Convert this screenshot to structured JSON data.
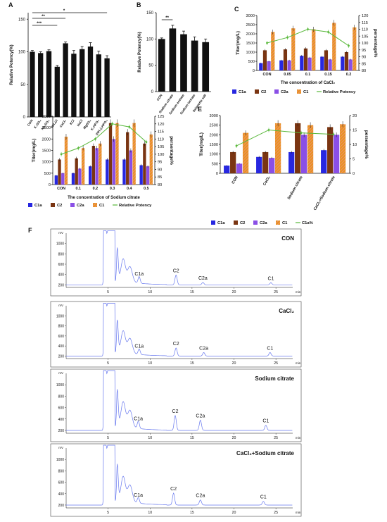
{
  "colors": {
    "C1a": "#2727e0",
    "C2": "#7a3512",
    "C2a": "#8a4fe6",
    "C1": "#e8951f",
    "C1_hatch": "#f08aa0",
    "line": "#58b83a",
    "hplc": "#6677ee",
    "bar": "#111111"
  },
  "chart_data": [
    {
      "panel_label": "A",
      "type": "bar",
      "ylabel": "Relative Potency(%)",
      "ylim": [
        0,
        160
      ],
      "yticks": [
        "0",
        "50",
        "100",
        "150"
      ],
      "categories": [
        "CON",
        "K₂SO₄",
        "Na₂SO₄",
        "NH₄Cl",
        "CaCl₂",
        "KCl",
        "NaCl",
        "MgSO₄",
        "K₂HPO₄",
        "(NH₄)₂HPO₄"
      ],
      "values": [
        100,
        98,
        101,
        77,
        113,
        97,
        104,
        108,
        96,
        90
      ],
      "errors": [
        2,
        2,
        2,
        2,
        2,
        5,
        4,
        6,
        5,
        4
      ],
      "significance": [
        "***",
        "**",
        "*"
      ]
    },
    {
      "panel_label": "B",
      "type": "bar",
      "ylabel": "Relative Potency(%)",
      "ylim": [
        0,
        150
      ],
      "yticks": [
        "0",
        "50",
        "100",
        "150"
      ],
      "categories": [
        "CON",
        "Sodium citrate",
        "Sodium acetate",
        "Sodium tartrate",
        "Seignette salt"
      ],
      "values": [
        100,
        120,
        109,
        97,
        94
      ],
      "errors": [
        2,
        6,
        6,
        7,
        6
      ],
      "significance": [
        "**"
      ]
    },
    {
      "panel_label": "C",
      "type": "bar",
      "xlabel": "The concentration of CaCl₂",
      "ylabel": "Titer(mg/L)",
      "y2label": "persentage%",
      "yticks": [
        "0",
        "500",
        "1000",
        "1500",
        "2000",
        "2500",
        "3000"
      ],
      "y2ticks": [
        "80",
        "85",
        "90",
        "95",
        "100",
        "105",
        "110",
        "115",
        "120"
      ],
      "ylim": [
        0,
        3000
      ],
      "y2lim": [
        80,
        120
      ],
      "categories": [
        "CON",
        "0.05",
        "0.1",
        "0.15",
        "0.2"
      ],
      "series": [
        {
          "name": "C1a",
          "values": [
            400,
            550,
            800,
            750,
            750
          ]
        },
        {
          "name": "C2",
          "values": [
            1100,
            1150,
            1200,
            1100,
            1000
          ]
        },
        {
          "name": "C2a",
          "values": [
            500,
            550,
            700,
            600,
            600
          ]
        },
        {
          "name": "C1",
          "values": [
            2100,
            2300,
            2250,
            2600,
            2350
          ]
        },
        {
          "name": "Relative Potency",
          "type": "line",
          "axis": "right",
          "values": [
            100,
            104,
            110,
            108,
            98
          ]
        }
      ]
    },
    {
      "panel_label": "D",
      "type": "bar",
      "xlabel": "The concentration of Sodium citrate",
      "ylabel": "Titer(mg/L)",
      "y2label": "persentage%",
      "yticks": [
        "0",
        "500",
        "1000",
        "1500",
        "2000",
        "2500",
        "3000"
      ],
      "y2ticks": [
        "80",
        "85",
        "90",
        "95",
        "100",
        "105",
        "110",
        "115",
        "120",
        "125"
      ],
      "ylim": [
        0,
        3000
      ],
      "y2lim": [
        80,
        125
      ],
      "categories": [
        "CON",
        "0.1",
        "0.2",
        "0.3",
        "0.4",
        "0.5"
      ],
      "series": [
        {
          "name": "C1a",
          "values": [
            400,
            500,
            800,
            1100,
            1100,
            850
          ]
        },
        {
          "name": "C2",
          "values": [
            1100,
            1150,
            1700,
            2700,
            2300,
            1800
          ]
        },
        {
          "name": "C2a",
          "values": [
            500,
            700,
            1600,
            2000,
            1500,
            800
          ]
        },
        {
          "name": "C1",
          "values": [
            2100,
            1600,
            1800,
            2700,
            2700,
            2200
          ]
        },
        {
          "name": "Relative Potency",
          "type": "line",
          "axis": "right",
          "values": [
            100,
            104,
            110,
            120,
            118,
            108
          ]
        }
      ]
    },
    {
      "panel_label": "E",
      "type": "bar",
      "ylabel": "Titer(mg/L)",
      "y2label": "persentage%",
      "yticks": [
        "0",
        "500",
        "1000",
        "1500",
        "2000",
        "2500",
        "3000"
      ],
      "y2ticks": [
        "0",
        "5",
        "10",
        "15",
        "20"
      ],
      "ylim": [
        0,
        3000
      ],
      "y2lim": [
        0,
        20
      ],
      "categories": [
        "CON",
        "CaCl₂",
        "Sodium citrate",
        "CaCl₂+Sodium citrate"
      ],
      "series": [
        {
          "name": "C1a",
          "values": [
            400,
            850,
            1100,
            1200
          ]
        },
        {
          "name": "C2",
          "values": [
            1100,
            1100,
            2600,
            2400
          ]
        },
        {
          "name": "C2a",
          "values": [
            500,
            800,
            2000,
            2000
          ]
        },
        {
          "name": "C1",
          "values": [
            2100,
            2600,
            2500,
            2550
          ]
        },
        {
          "name": "C1a%",
          "type": "line",
          "axis": "right",
          "values": [
            9.5,
            15,
            14,
            13.5
          ]
        }
      ]
    },
    {
      "panel_label": "F",
      "type": "line",
      "unit_y": "mV",
      "unit_x": "min",
      "xlim": [
        0,
        27
      ],
      "xticks": [
        "5",
        "10",
        "15",
        "20",
        "25"
      ],
      "yticks": [
        "200",
        "400",
        "600",
        "800",
        "1000"
      ],
      "traces": [
        {
          "name": "CON",
          "peaks": [
            {
              "label": "C1a",
              "x": 8.7,
              "y": 330
            },
            {
              "label": "C2",
              "x": 13.1,
              "y": 390
            },
            {
              "label": "C2a",
              "x": 16.3,
              "y": 245
            },
            {
              "label": "C1",
              "x": 24.4,
              "y": 240
            }
          ]
        },
        {
          "name": "CaCl₂",
          "peaks": [
            {
              "label": "C1a",
              "x": 8.7,
              "y": 310
            },
            {
              "label": "C2",
              "x": 13.1,
              "y": 360
            },
            {
              "label": "C2a",
              "x": 16.4,
              "y": 270
            },
            {
              "label": "C1",
              "x": 24.3,
              "y": 270
            }
          ]
        },
        {
          "name": "Sodium citrate",
          "peaks": [
            {
              "label": "C1a",
              "x": 8.6,
              "y": 330
            },
            {
              "label": "C2",
              "x": 13.0,
              "y": 460
            },
            {
              "label": "C2a",
              "x": 16.0,
              "y": 380
            },
            {
              "label": "C1",
              "x": 23.8,
              "y": 290
            }
          ]
        },
        {
          "name": "CaCl₂+Sodium citrate",
          "peaks": [
            {
              "label": "C1a",
              "x": 8.6,
              "y": 300
            },
            {
              "label": "C2",
              "x": 12.8,
              "y": 410
            },
            {
              "label": "C2a",
              "x": 16.0,
              "y": 290
            },
            {
              "label": "C1",
              "x": 23.5,
              "y": 265
            }
          ]
        }
      ]
    }
  ]
}
